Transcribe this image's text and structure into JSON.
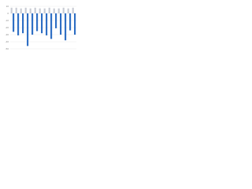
{
  "chart_data": {
    "type": "bar",
    "categories": [
      null,
      null,
      null,
      null,
      null,
      null,
      null,
      null,
      null,
      null,
      null,
      null,
      null,
      null
    ],
    "series": [
      {
        "color": "#c9ccd4",
        "values": [
          8,
          8,
          7,
          8,
          7,
          8,
          7,
          7,
          8,
          7,
          7,
          8,
          7,
          8
        ]
      },
      {
        "color": "#2f6fc4",
        "values": [
          -26,
          -31,
          -28,
          -46,
          -30,
          -25,
          -28,
          -31,
          -36,
          -21,
          -30,
          -38,
          -24,
          -30
        ]
      }
    ],
    "ylim": [
      -50,
      10
    ],
    "yticks": [
      -50,
      -40,
      -30,
      -20,
      -10,
      0,
      10
    ],
    "grid": true
  }
}
